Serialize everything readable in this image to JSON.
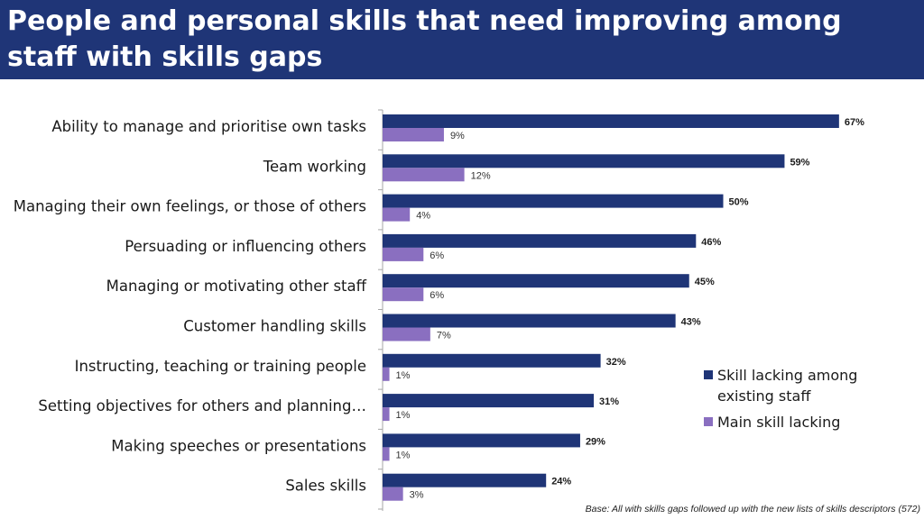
{
  "title": "People and personal skills that need improving among staff with skills gaps",
  "footnote": "Base: All with skills gaps followed up with the new lists of skills descriptors (572)",
  "colors": {
    "header_bg": "#1f3577",
    "series1": "#1f3577",
    "series2": "#8a6fc0"
  },
  "chart_data": {
    "type": "bar",
    "orientation": "horizontal",
    "categories": [
      "Ability to manage and prioritise own tasks",
      "Team working",
      "Managing their own feelings, or those of others",
      "Persuading or influencing others",
      "Managing or motivating other staff",
      "Customer handling skills",
      "Instructing, teaching or training people",
      "Setting objectives for others and planning…",
      "Making speeches or presentations",
      "Sales skills"
    ],
    "series": [
      {
        "name": "Skill lacking among existing staff",
        "legend_lines": [
          "Skill lacking among",
          "existing staff"
        ],
        "values": [
          67,
          59,
          50,
          46,
          45,
          43,
          32,
          31,
          29,
          24
        ],
        "labels": [
          "67%",
          "59%",
          "50%",
          "46%",
          "45%",
          "43%",
          "32%",
          "31%",
          "29%",
          "24%"
        ]
      },
      {
        "name": "Main skill lacking",
        "legend_lines": [
          "Main skill lacking"
        ],
        "values": [
          9,
          12,
          4,
          6,
          6,
          7,
          1,
          1,
          1,
          3
        ],
        "labels": [
          "9%",
          "12%",
          "4%",
          "6%",
          "6%",
          "7%",
          "1%",
          "1%",
          "1%",
          "3%"
        ]
      }
    ],
    "xlim": [
      0,
      70
    ],
    "unit": "%",
    "legend_position": "right"
  }
}
